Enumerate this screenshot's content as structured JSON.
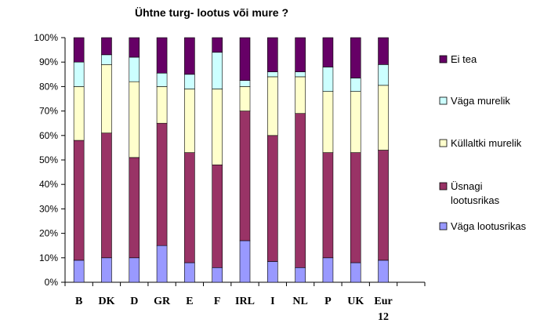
{
  "chart_data": {
    "type": "bar",
    "stacked": true,
    "percent": true,
    "title": "Ühtne turg- lootus või mure ?",
    "xlabel": "",
    "ylabel": "",
    "ylim": [
      0,
      100
    ],
    "yticks": [
      "0%",
      "10%",
      "20%",
      "30%",
      "40%",
      "50%",
      "60%",
      "70%",
      "80%",
      "90%",
      "100%"
    ],
    "grid": false,
    "legend_position": "right",
    "categories": [
      "B",
      "DK",
      "D",
      "GR",
      "E",
      "F",
      "IRL",
      "I",
      "NL",
      "P",
      "UK",
      "Eur 12"
    ],
    "category_lines": [
      [
        "B"
      ],
      [
        "DK"
      ],
      [
        "D"
      ],
      [
        "GR"
      ],
      [
        "E"
      ],
      [
        "F"
      ],
      [
        "IRL"
      ],
      [
        "I"
      ],
      [
        "NL"
      ],
      [
        "P"
      ],
      [
        "UK"
      ],
      [
        "Eur",
        "12"
      ]
    ],
    "series": [
      {
        "name": "Väga lootusrikas",
        "label_lines": [
          "Väga lootusrikas"
        ],
        "color": "#9999ff",
        "values": [
          9,
          10,
          10,
          15,
          8,
          6,
          17,
          8.5,
          6,
          10,
          8,
          9
        ]
      },
      {
        "name": "Üsnagi lootusrikas",
        "label_lines": [
          "Üsnagi",
          "lootusrikas"
        ],
        "color": "#993366",
        "values": [
          49,
          51,
          41,
          50,
          45,
          42,
          53,
          51.5,
          63,
          43,
          45,
          45
        ]
      },
      {
        "name": "Küllaltki murelik",
        "label_lines": [
          "Küllaltki murelik"
        ],
        "color": "#ffffcc",
        "values": [
          22,
          28,
          31,
          15,
          26,
          31,
          10,
          24,
          15,
          25,
          25,
          26.5
        ]
      },
      {
        "name": "Väga murelik",
        "label_lines": [
          "Väga murelik"
        ],
        "color": "#ccffff",
        "values": [
          10,
          4,
          10,
          5.5,
          6,
          15,
          2.5,
          2,
          2,
          10,
          5.5,
          8.5
        ]
      },
      {
        "name": "Ei tea",
        "label_lines": [
          "Ei tea"
        ],
        "color": "#660066",
        "values": [
          10,
          7,
          8,
          14.5,
          15,
          6,
          17.5,
          14,
          14,
          12,
          16.5,
          11
        ]
      }
    ]
  }
}
